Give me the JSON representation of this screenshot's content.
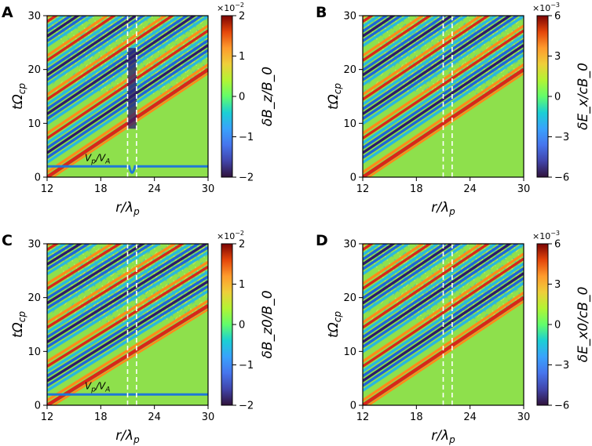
{
  "figure": {
    "description_panels": [
      "A",
      "B",
      "C",
      "D"
    ]
  },
  "chart_data": [
    {
      "type": "heatmap",
      "panel_label": "A",
      "xlabel_main": "r",
      "xlabel_sub": "p",
      "xlabel_sym": "λ",
      "ylabel_main": "tΩ",
      "ylabel_sub": "cp",
      "xlim": [
        12,
        30
      ],
      "ylim": [
        0,
        30
      ],
      "xticks": [
        "12",
        "18",
        "24",
        "30"
      ],
      "yticks": [
        "0",
        "10",
        "20",
        "30"
      ],
      "colorbar_label": "δB_z/B_0",
      "colorbar_ticks": [
        "2",
        "1",
        "0",
        "−1",
        "−2"
      ],
      "colorbar_range": [
        -2,
        2
      ],
      "colorbar_multiplier": "×10",
      "colorbar_exponent": "−2",
      "dashed_lines_x": [
        21,
        22
      ],
      "annotation": "Vp/VA",
      "annotation_text": {
        "v": "V",
        "p": "p",
        "slash": "/",
        "va": "V",
        "a": "A"
      },
      "velocity_line_y": 2,
      "wave_front": {
        "x": [
          12,
          30
        ],
        "t": [
          0,
          20
        ]
      },
      "discontinuity": true
    },
    {
      "type": "heatmap",
      "panel_label": "B",
      "xlabel_main": "r",
      "xlabel_sub": "p",
      "xlabel_sym": "λ",
      "ylabel_main": "tΩ",
      "ylabel_sub": "cp",
      "xlim": [
        12,
        30
      ],
      "ylim": [
        0,
        30
      ],
      "xticks": [
        "12",
        "18",
        "24",
        "30"
      ],
      "yticks": [
        "0",
        "10",
        "20",
        "30"
      ],
      "colorbar_label": "δE_x/cB_0",
      "colorbar_ticks": [
        "6",
        "3",
        "0",
        "−3",
        "−6"
      ],
      "colorbar_range": [
        -6,
        6
      ],
      "colorbar_multiplier": "×10",
      "colorbar_exponent": "−3",
      "dashed_lines_x": [
        21,
        22
      ],
      "wave_front": {
        "x": [
          12,
          30
        ],
        "t": [
          0,
          20
        ]
      }
    },
    {
      "type": "heatmap",
      "panel_label": "C",
      "xlabel_main": "r",
      "xlabel_sub": "p",
      "xlabel_sym": "λ",
      "ylabel_main": "tΩ",
      "ylabel_sub": "cp",
      "xlim": [
        12,
        30
      ],
      "ylim": [
        0,
        30
      ],
      "xticks": [
        "12",
        "18",
        "24",
        "30"
      ],
      "yticks": [
        "0",
        "10",
        "20",
        "30"
      ],
      "colorbar_label": "δB_z0/B_0",
      "colorbar_ticks": [
        "2",
        "1",
        "0",
        "−1",
        "−2"
      ],
      "colorbar_range": [
        -2,
        2
      ],
      "colorbar_multiplier": "×10",
      "colorbar_exponent": "−2",
      "dashed_lines_x": [
        21,
        22
      ],
      "annotation": "Vp/VA",
      "annotation_text": {
        "v": "V",
        "p": "p",
        "slash": "/",
        "va": "V",
        "a": "A"
      },
      "velocity_line_y": 2,
      "wave_front": {
        "x": [
          12,
          30
        ],
        "t": [
          0,
          18.5
        ]
      }
    },
    {
      "type": "heatmap",
      "panel_label": "D",
      "xlabel_main": "r",
      "xlabel_sub": "p",
      "xlabel_sym": "λ",
      "ylabel_main": "tΩ",
      "ylabel_sub": "cp",
      "xlim": [
        12,
        30
      ],
      "ylim": [
        0,
        30
      ],
      "xticks": [
        "12",
        "18",
        "24",
        "30"
      ],
      "yticks": [
        "0",
        "10",
        "20",
        "30"
      ],
      "colorbar_label": "δE_x0/cB_0",
      "colorbar_ticks": [
        "6",
        "3",
        "0",
        "−3",
        "−6"
      ],
      "colorbar_range": [
        -6,
        6
      ],
      "colorbar_multiplier": "×10",
      "colorbar_exponent": "−3",
      "dashed_lines_x": [
        21,
        22
      ],
      "wave_front": {
        "x": [
          12,
          30
        ],
        "t": [
          0,
          20
        ]
      }
    }
  ],
  "colors": {
    "background_field": "#8ee04c",
    "stripe_dark": "#2b1a6e",
    "stripe_blue": "#1e64d8",
    "stripe_cyan": "#29b6e0",
    "stripe_orange": "#ff8a1a",
    "stripe_red": "#d8271b",
    "velocity_line": "#1f78d6",
    "dashed": "#ffffff"
  }
}
